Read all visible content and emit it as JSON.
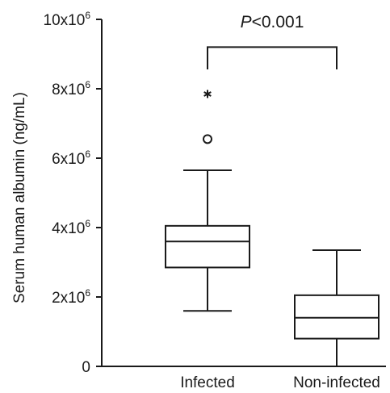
{
  "chart_data": {
    "type": "box",
    "ylabel": "Serum human albumin (ng/mL)",
    "ylim": [
      0,
      10000000
    ],
    "yticks": [
      {
        "value": 0,
        "base": "0",
        "exp": ""
      },
      {
        "value": 2000000,
        "base": "2x10",
        "exp": "6"
      },
      {
        "value": 4000000,
        "base": "4x10",
        "exp": "6"
      },
      {
        "value": 6000000,
        "base": "6x10",
        "exp": "6"
      },
      {
        "value": 8000000,
        "base": "8x10",
        "exp": "6"
      },
      {
        "value": 10000000,
        "base": "10x10",
        "exp": "6"
      }
    ],
    "categories": [
      "Infected",
      "Non-infected"
    ],
    "boxes": [
      {
        "category": "Infected",
        "whisker_low": 1600000,
        "q1": 2850000,
        "median": 3600000,
        "q3": 4050000,
        "whisker_high": 5650000,
        "outliers": [
          {
            "value": 6550000,
            "marker": "circle"
          },
          {
            "value": 7850000,
            "marker": "asterisk"
          }
        ]
      },
      {
        "category": "Non-infected",
        "whisker_low": 0,
        "q1": 800000,
        "median": 1400000,
        "q3": 2050000,
        "whisker_high": 3350000,
        "outliers": []
      }
    ],
    "significance": {
      "italic": "P",
      "rest": "<0.001",
      "y": 9200000
    },
    "grid": false,
    "legend": "none"
  }
}
